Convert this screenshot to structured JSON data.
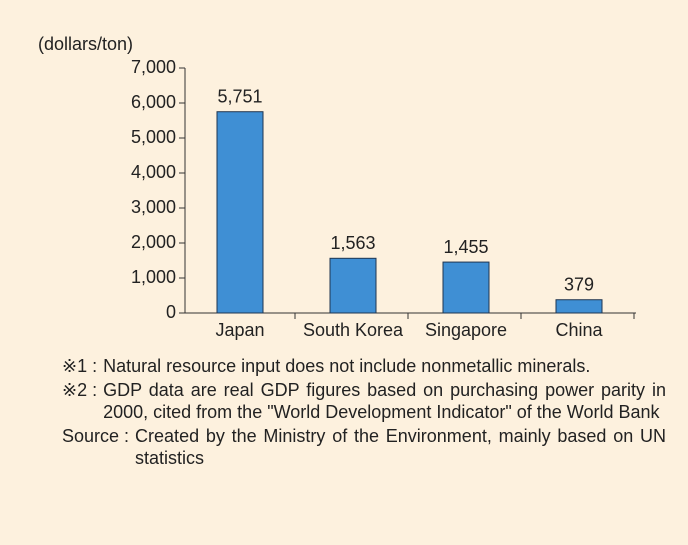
{
  "chart_data": {
    "type": "bar",
    "y_axis_label": "(dollars/ton)",
    "categories": [
      "Japan",
      "South Korea",
      "Singapore",
      "China"
    ],
    "values": [
      5751,
      1563,
      1455,
      379
    ],
    "value_labels": [
      "5,751",
      "1,563",
      "1,455",
      "379"
    ],
    "color": "#3f8fd4",
    "ylim": [
      0,
      7000
    ],
    "yticks": [
      0,
      {
        "value": 1000,
        "label": "1,000"
      },
      {
        "value": 2000,
        "label": "2,000"
      },
      {
        "value": 3000,
        "label": "3,000"
      },
      {
        "value": 4000,
        "label": "4,000"
      },
      {
        "value": 5000,
        "label": "5,000"
      },
      {
        "value": 6000,
        "label": "6,000"
      },
      {
        "value": 7000,
        "label": "7,000"
      }
    ]
  },
  "notes": [
    {
      "label": "※1 :",
      "text": "Natural resource input does not include nonmetallic minerals."
    },
    {
      "label": "※2 :",
      "text": "GDP data are real GDP figures based on purchasing power parity  in 2000, cited from the \"World Development Indicator\" of the World Bank"
    },
    {
      "label": "Source :",
      "text": "Created by the Ministry of the Environment, mainly based on UN statistics"
    }
  ]
}
